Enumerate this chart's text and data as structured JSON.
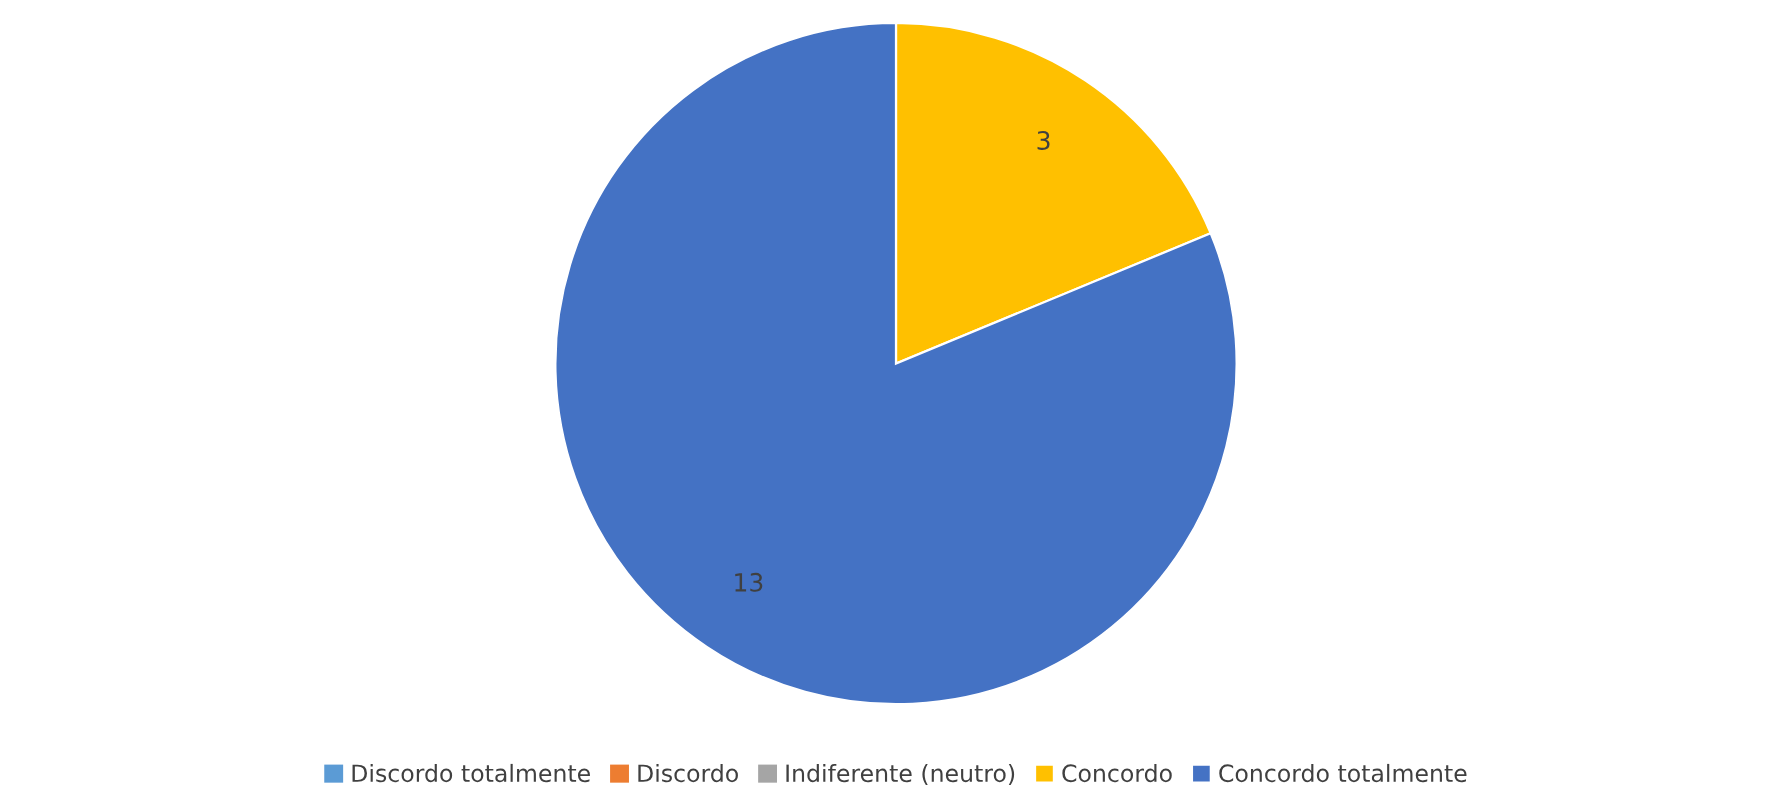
{
  "chart_data": {
    "type": "pie",
    "categories": [
      "Discordo totalmente",
      "Discordo",
      "Indiferente (neutro)",
      "Concordo",
      "Concordo totalmente"
    ],
    "values": [
      0,
      0,
      0,
      3,
      13
    ],
    "colors": [
      "#5b9bd5",
      "#ed7d31",
      "#a5a5a5",
      "#ffc000",
      "#4472c4"
    ],
    "value_labels": [
      null,
      null,
      null,
      "3",
      "13"
    ],
    "legend": "bottom"
  }
}
